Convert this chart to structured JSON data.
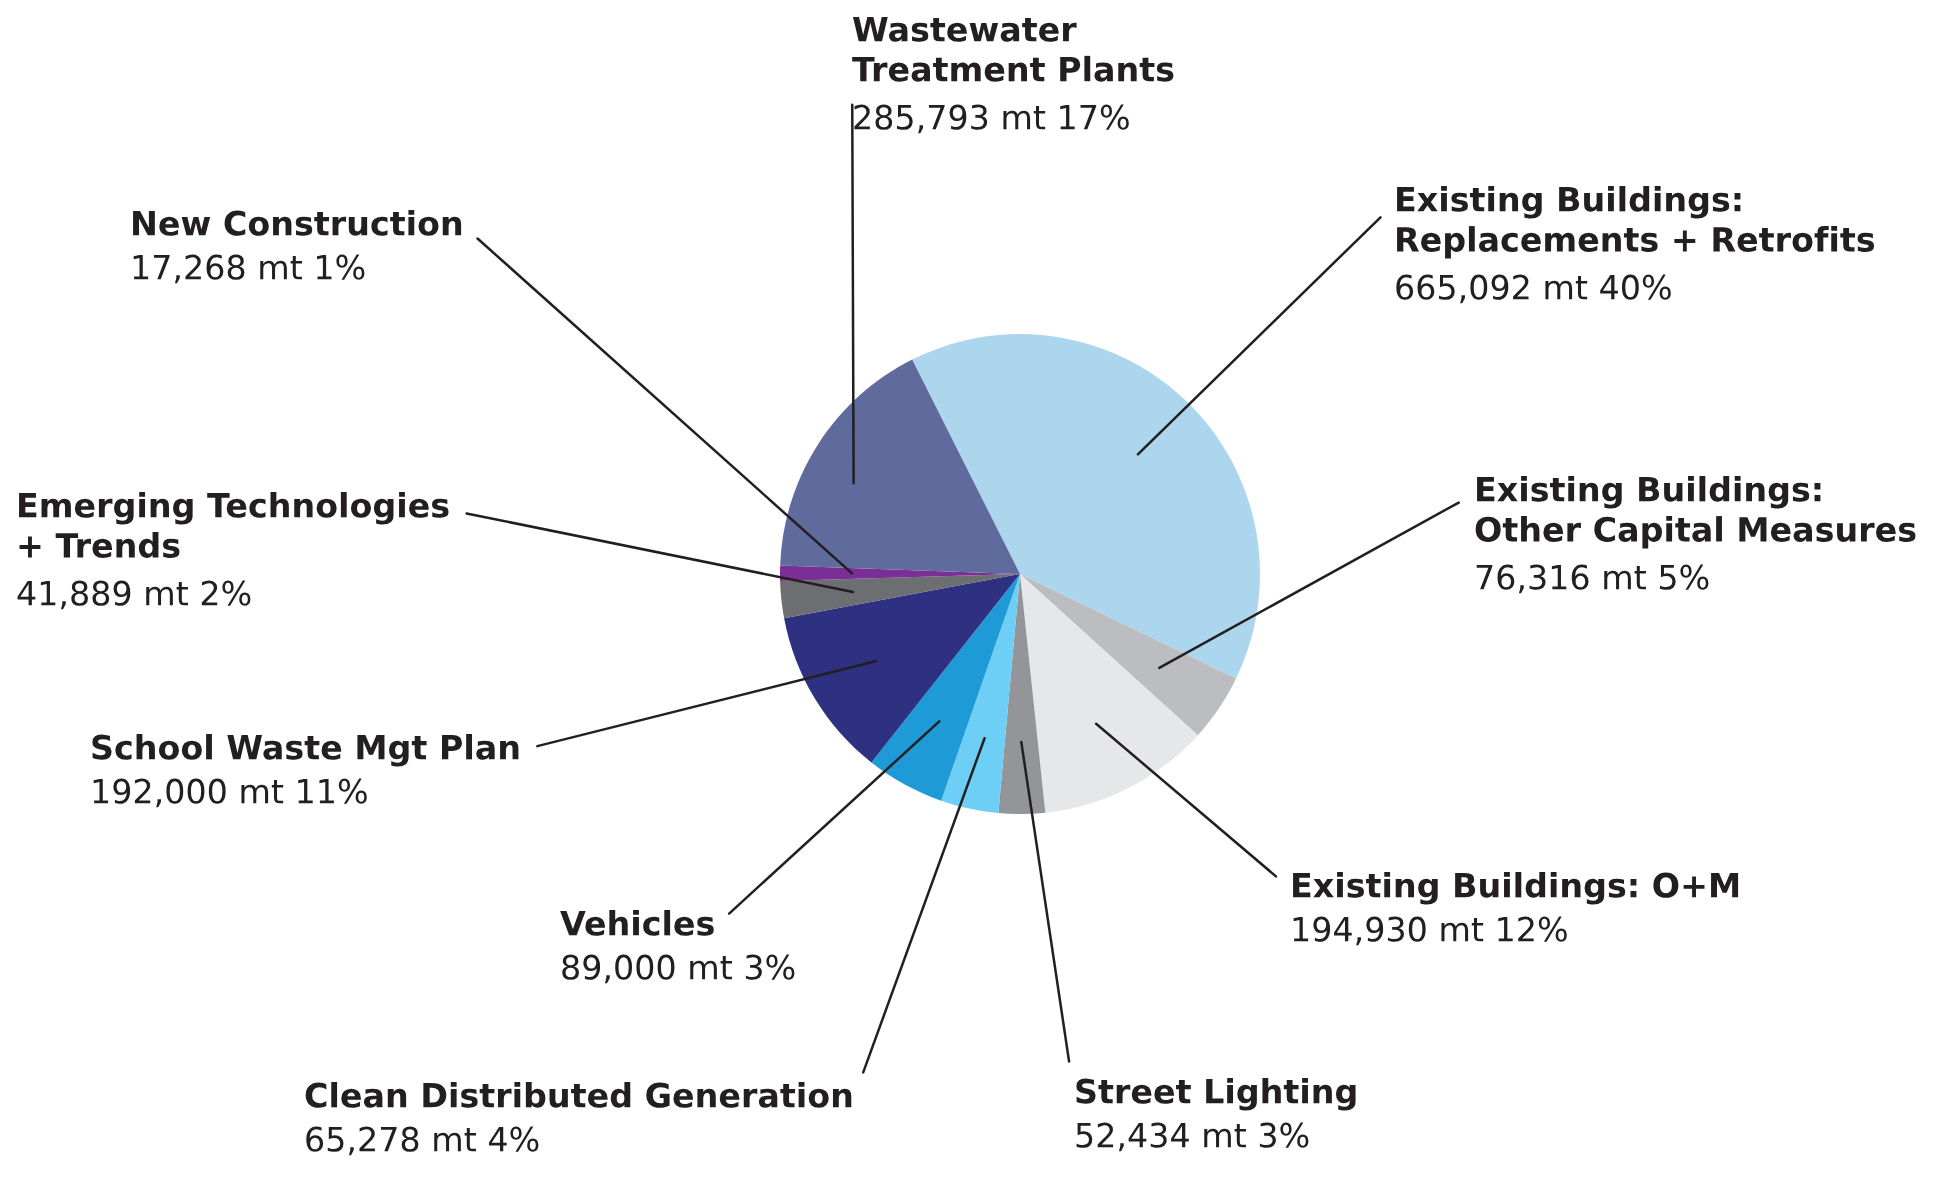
{
  "chart_data": {
    "type": "pie",
    "categories": [
      "Existing Buildings:\nReplacements + Retrofits",
      "Existing Buildings:\nOther Capital Measures",
      "Existing Buildings: O+M",
      "Street Lighting",
      "Clean Distributed Generation",
      "Vehicles",
      "School Waste Mgt Plan",
      "Emerging Technologies\n+ Trends",
      "New Construction",
      "Wastewater\nTreatment Plants"
    ],
    "values": [
      665092,
      76316,
      194930,
      52434,
      65278,
      89000,
      192000,
      41889,
      17268,
      285793
    ],
    "value_labels": [
      "665,092 mt 40%",
      "76,316 mt 5%",
      "194,930 mt 12%",
      "52,434 mt 3%",
      "65,278 mt 4%",
      "89,000 mt 3%",
      "192,000 mt 11%",
      "41,889 mt 2%",
      "17,268 mt 1%",
      "285,793 mt 17%"
    ],
    "colors": [
      "#acd5ee",
      "#bcbdc0",
      "#e6e7e8",
      "#939598",
      "#6dcff6",
      "#1e9ad6",
      "#2e3182",
      "#6d6e71",
      "#7b2f96",
      "#5f6b9c"
    ]
  }
}
